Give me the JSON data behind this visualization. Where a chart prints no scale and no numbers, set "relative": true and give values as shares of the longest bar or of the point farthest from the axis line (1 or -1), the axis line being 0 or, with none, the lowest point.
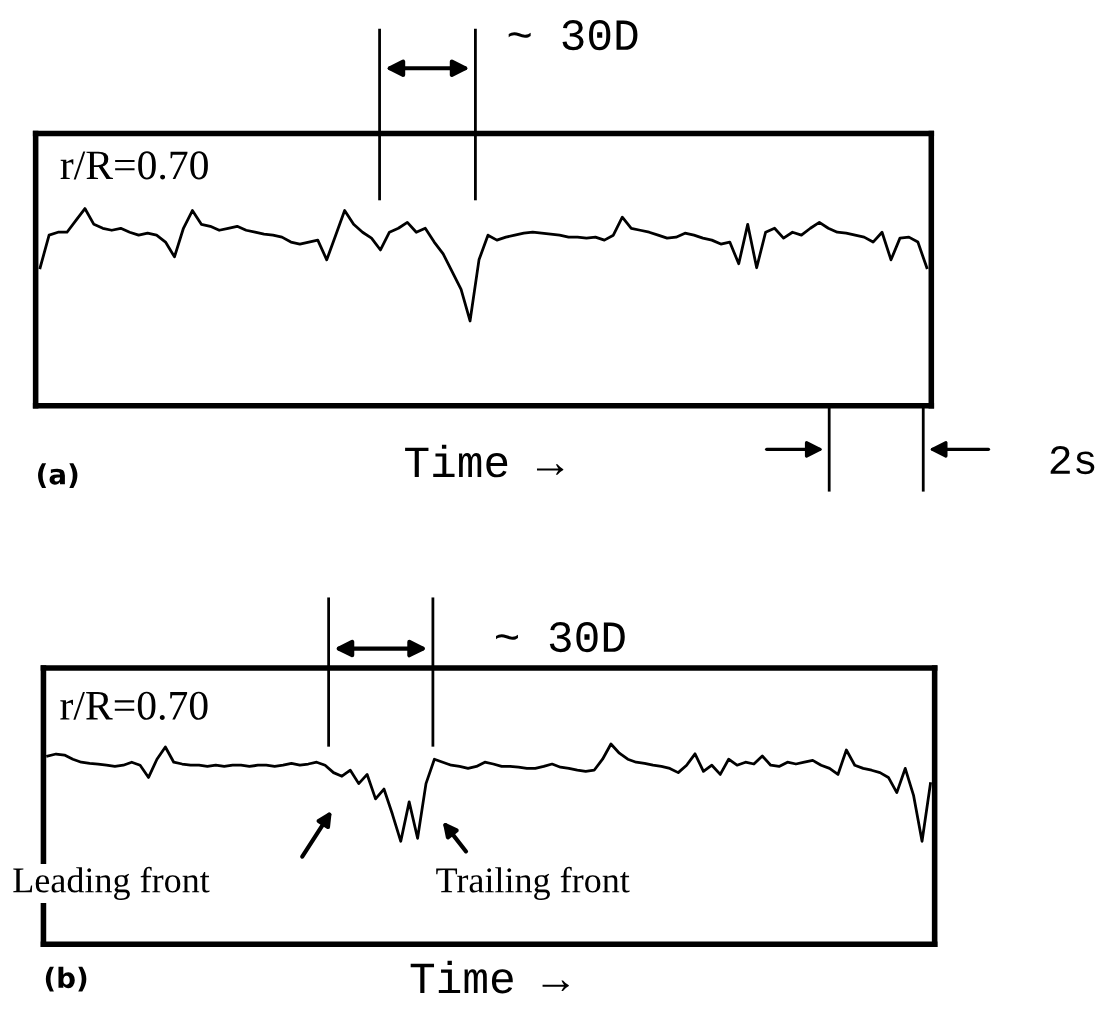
{
  "chart_data": [
    {
      "type": "line",
      "relative": true,
      "xlabel": "Time →",
      "annotations": [
        "r/R=0.70",
        "~ 30D",
        "(a)",
        "2s"
      ],
      "categories": [
        null,
        null,
        null,
        null,
        null,
        null,
        null,
        null,
        null,
        null,
        null,
        null,
        null,
        null,
        null,
        null,
        null,
        null,
        null,
        null,
        null,
        null,
        null,
        null,
        null,
        null,
        null,
        null,
        null,
        null,
        null,
        null,
        null,
        null,
        null,
        null,
        null,
        null,
        null,
        null,
        null,
        null,
        null,
        null,
        null,
        null,
        null,
        null,
        null,
        null,
        null,
        null,
        null,
        null,
        null,
        null,
        null,
        null,
        null,
        null,
        null,
        null,
        null,
        null,
        null,
        null,
        null,
        null,
        null,
        null,
        null,
        null,
        null,
        null,
        null,
        null,
        null,
        null,
        null,
        null,
        null,
        null,
        null,
        null,
        null,
        null,
        null,
        null,
        null,
        null,
        null,
        null,
        null,
        null,
        null,
        null,
        null,
        null,
        null,
        null
      ],
      "series": [
        {
          "color": "#000000",
          "values": [
            0.7,
            0.865,
            0.88,
            0.88,
            0.94,
            1.0,
            0.92,
            0.9,
            0.89,
            0.9,
            0.88,
            0.865,
            0.875,
            0.865,
            0.83,
            0.755,
            0.9,
            0.99,
            0.92,
            0.91,
            0.89,
            0.9,
            0.91,
            0.89,
            0.88,
            0.87,
            0.865,
            0.855,
            0.83,
            0.82,
            0.83,
            0.84,
            0.74,
            0.865,
            0.99,
            0.92,
            0.88,
            0.85,
            0.79,
            0.88,
            0.9,
            0.93,
            0.88,
            0.9,
            0.83,
            0.77,
            0.68,
            0.59,
            0.43,
            0.74,
            0.865,
            0.84,
            0.855,
            0.865,
            0.875,
            0.88,
            0.875,
            0.87,
            0.865,
            0.855,
            0.855,
            0.85,
            0.855,
            0.84,
            0.865,
            0.956,
            0.9,
            0.89,
            0.88,
            0.865,
            0.85,
            0.855,
            0.875,
            0.865,
            0.85,
            0.84,
            0.82,
            0.83,
            0.72,
            0.92,
            0.7,
            0.88,
            0.9,
            0.85,
            0.88,
            0.865,
            0.9,
            0.93,
            0.9,
            0.88,
            0.875,
            0.865,
            0.855,
            0.83,
            0.88,
            0.74,
            0.85,
            0.855,
            0.83,
            0.7
          ]
        }
      ]
    },
    {
      "type": "line",
      "relative": true,
      "xlabel": "Time →",
      "annotations": [
        "r/R=0.70",
        "~ 30D",
        "(b)",
        "Leading front",
        "Trailing front"
      ],
      "categories": [
        null,
        null,
        null,
        null,
        null,
        null,
        null,
        null,
        null,
        null,
        null,
        null,
        null,
        null,
        null,
        null,
        null,
        null,
        null,
        null,
        null,
        null,
        null,
        null,
        null,
        null,
        null,
        null,
        null,
        null,
        null,
        null,
        null,
        null,
        null,
        null,
        null,
        null,
        null,
        null,
        null,
        null,
        null,
        null,
        null,
        null,
        null,
        null,
        null,
        null,
        null,
        null,
        null,
        null,
        null,
        null,
        null,
        null,
        null,
        null,
        null,
        null,
        null,
        null,
        null,
        null,
        null,
        null,
        null,
        null,
        null,
        null,
        null,
        null,
        null,
        null,
        null,
        null,
        null,
        null,
        null,
        null,
        null,
        null,
        null,
        null,
        null,
        null,
        null,
        null,
        null,
        null,
        null,
        null,
        null,
        null,
        null,
        null,
        null,
        null,
        null,
        null,
        null,
        null,
        null,
        null
      ],
      "series": [
        {
          "color": "#000000",
          "values": [
            0.94,
            0.95,
            0.945,
            0.924,
            0.909,
            0.903,
            0.9,
            0.894,
            0.888,
            0.894,
            0.909,
            0.894,
            0.833,
            0.924,
            0.985,
            0.909,
            0.9,
            0.894,
            0.894,
            0.888,
            0.894,
            0.888,
            0.894,
            0.894,
            0.888,
            0.894,
            0.894,
            0.888,
            0.894,
            0.903,
            0.894,
            0.9,
            0.909,
            0.894,
            0.857,
            0.839,
            0.869,
            0.802,
            0.848,
            0.726,
            0.775,
            0.65,
            0.514,
            0.711,
            0.529,
            0.802,
            0.924,
            0.909,
            0.894,
            0.888,
            0.878,
            0.888,
            0.909,
            0.9,
            0.888,
            0.888,
            0.884,
            0.878,
            0.878,
            0.888,
            0.9,
            0.884,
            0.878,
            0.869,
            0.863,
            0.869,
            0.924,
            1.0,
            0.954,
            0.924,
            0.909,
            0.903,
            0.894,
            0.888,
            0.878,
            0.857,
            0.894,
            0.951,
            0.863,
            0.894,
            0.848,
            0.924,
            0.894,
            0.909,
            0.9,
            0.94,
            0.894,
            0.888,
            0.909,
            0.9,
            0.909,
            0.918,
            0.894,
            0.878,
            0.848,
            0.97,
            0.894,
            0.878,
            0.869,
            0.857,
            0.833,
            0.757,
            0.878,
            0.742,
            0.514,
            0.802
          ]
        }
      ]
    }
  ]
}
